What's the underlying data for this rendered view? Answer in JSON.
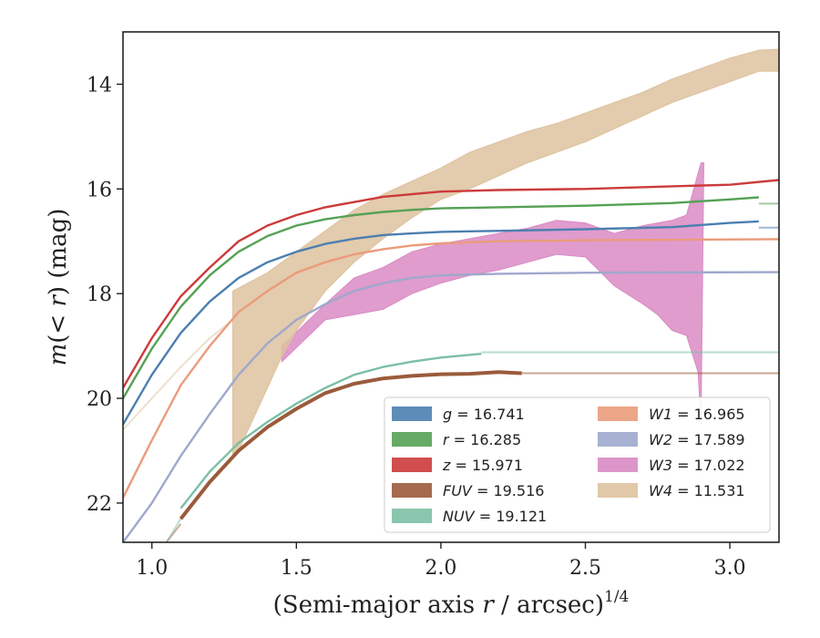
{
  "chart_data": {
    "type": "line",
    "xlabel_main": "(Semi-major axis ",
    "xlabel_var": "r",
    "xlabel_tail": " / arcsec)",
    "xlabel_exp": "1/4",
    "ylabel_main": "m",
    "ylabel_mid": "(< ",
    "ylabel_var": "r",
    "ylabel_tail": ") (mag)",
    "xlim": [
      0.9,
      3.17
    ],
    "ylim": [
      22.75,
      13.0
    ],
    "y_inverted": true,
    "xticks": [
      1.0,
      1.5,
      2.0,
      2.5,
      3.0
    ],
    "xtick_labels": [
      "1.0",
      "1.5",
      "2.0",
      "2.5",
      "3.0"
    ],
    "yticks": [
      14,
      16,
      18,
      20,
      22
    ],
    "ytick_labels": [
      "14",
      "16",
      "18",
      "20",
      "22"
    ],
    "grid": false,
    "legend_position": "lower-right",
    "series": [
      {
        "name": "g = 16.741",
        "color": "#4c7fb0",
        "kind": "line",
        "asymptote": 16.74,
        "points": [
          [
            0.9,
            20.5
          ],
          [
            1.0,
            19.55
          ],
          [
            1.1,
            18.75
          ],
          [
            1.2,
            18.15
          ],
          [
            1.3,
            17.7
          ],
          [
            1.4,
            17.4
          ],
          [
            1.5,
            17.2
          ],
          [
            1.6,
            17.05
          ],
          [
            1.7,
            16.95
          ],
          [
            1.8,
            16.88
          ],
          [
            1.9,
            16.85
          ],
          [
            2.0,
            16.82
          ],
          [
            2.2,
            16.8
          ],
          [
            2.5,
            16.77
          ],
          [
            2.8,
            16.73
          ],
          [
            3.0,
            16.65
          ],
          [
            3.1,
            16.62
          ]
        ]
      },
      {
        "name": "r = 16.285",
        "color": "#55a155",
        "kind": "line",
        "asymptote": 16.28,
        "points": [
          [
            0.9,
            20.0
          ],
          [
            1.0,
            19.05
          ],
          [
            1.1,
            18.25
          ],
          [
            1.2,
            17.65
          ],
          [
            1.3,
            17.2
          ],
          [
            1.4,
            16.9
          ],
          [
            1.5,
            16.7
          ],
          [
            1.6,
            16.58
          ],
          [
            1.7,
            16.5
          ],
          [
            1.8,
            16.44
          ],
          [
            1.9,
            16.4
          ],
          [
            2.0,
            16.37
          ],
          [
            2.2,
            16.35
          ],
          [
            2.5,
            16.32
          ],
          [
            2.8,
            16.27
          ],
          [
            3.0,
            16.2
          ],
          [
            3.1,
            16.16
          ]
        ]
      },
      {
        "name": "z = 15.971",
        "color": "#cc3b3b",
        "kind": "line",
        "asymptote": 15.97,
        "points": [
          [
            0.9,
            19.8
          ],
          [
            1.0,
            18.85
          ],
          [
            1.1,
            18.05
          ],
          [
            1.2,
            17.5
          ],
          [
            1.3,
            17.0
          ],
          [
            1.4,
            16.7
          ],
          [
            1.5,
            16.5
          ],
          [
            1.6,
            16.35
          ],
          [
            1.7,
            16.25
          ],
          [
            1.8,
            16.15
          ],
          [
            1.9,
            16.1
          ],
          [
            2.0,
            16.05
          ],
          [
            2.2,
            16.02
          ],
          [
            2.5,
            16.0
          ],
          [
            2.8,
            15.95
          ],
          [
            3.0,
            15.92
          ],
          [
            3.17,
            15.83
          ]
        ]
      },
      {
        "name": "FUV = 19.516",
        "color": "#9a5b3b",
        "kind": "thick",
        "asymptote": 19.52,
        "points": [
          [
            1.1,
            22.3
          ],
          [
            1.2,
            21.6
          ],
          [
            1.3,
            21.0
          ],
          [
            1.4,
            20.55
          ],
          [
            1.5,
            20.2
          ],
          [
            1.6,
            19.9
          ],
          [
            1.7,
            19.72
          ],
          [
            1.8,
            19.62
          ],
          [
            1.9,
            19.57
          ],
          [
            2.0,
            19.54
          ],
          [
            2.1,
            19.53
          ],
          [
            2.2,
            19.5
          ],
          [
            2.28,
            19.52
          ]
        ]
      },
      {
        "name": "NUV = 19.121",
        "color": "#7dbfa5",
        "kind": "line",
        "asymptote": 19.12,
        "points": [
          [
            1.1,
            22.1
          ],
          [
            1.2,
            21.4
          ],
          [
            1.3,
            20.85
          ],
          [
            1.4,
            20.45
          ],
          [
            1.5,
            20.1
          ],
          [
            1.6,
            19.8
          ],
          [
            1.7,
            19.55
          ],
          [
            1.8,
            19.4
          ],
          [
            1.9,
            19.3
          ],
          [
            2.0,
            19.22
          ],
          [
            2.14,
            19.15
          ]
        ]
      },
      {
        "name": "W1 = 16.965",
        "color": "#eb9b7b",
        "kind": "line",
        "asymptote": 16.97,
        "points": [
          [
            0.9,
            21.9
          ],
          [
            1.0,
            20.8
          ],
          [
            1.1,
            19.75
          ],
          [
            1.2,
            19.0
          ],
          [
            1.3,
            18.35
          ],
          [
            1.4,
            17.95
          ],
          [
            1.5,
            17.6
          ],
          [
            1.6,
            17.4
          ],
          [
            1.7,
            17.25
          ],
          [
            1.8,
            17.15
          ],
          [
            1.9,
            17.08
          ],
          [
            2.0,
            17.04
          ],
          [
            2.2,
            17.0
          ],
          [
            2.5,
            16.98
          ],
          [
            3.17,
            16.96
          ]
        ]
      },
      {
        "name": "W2 = 17.589",
        "color": "#9fa8cc",
        "kind": "line",
        "asymptote": 17.59,
        "points": [
          [
            0.9,
            22.75
          ],
          [
            1.0,
            22.0
          ],
          [
            1.1,
            21.1
          ],
          [
            1.2,
            20.3
          ],
          [
            1.3,
            19.55
          ],
          [
            1.4,
            18.95
          ],
          [
            1.5,
            18.5
          ],
          [
            1.6,
            18.2
          ],
          [
            1.7,
            17.95
          ],
          [
            1.8,
            17.8
          ],
          [
            1.9,
            17.7
          ],
          [
            2.0,
            17.65
          ],
          [
            2.2,
            17.62
          ],
          [
            2.5,
            17.6
          ],
          [
            3.17,
            17.59
          ]
        ]
      },
      {
        "name": "W3 = 17.022",
        "color": "#d98bc4",
        "kind": "band",
        "upper": [
          [
            1.45,
            19.0
          ],
          [
            1.6,
            18.2
          ],
          [
            1.7,
            17.7
          ],
          [
            1.8,
            17.5
          ],
          [
            1.9,
            17.2
          ],
          [
            2.0,
            17.05
          ],
          [
            2.1,
            16.95
          ],
          [
            2.2,
            16.85
          ],
          [
            2.3,
            16.75
          ],
          [
            2.4,
            16.6
          ],
          [
            2.5,
            16.65
          ],
          [
            2.6,
            16.85
          ],
          [
            2.7,
            16.7
          ],
          [
            2.8,
            16.6
          ],
          [
            2.85,
            16.5
          ],
          [
            2.9,
            15.5
          ],
          [
            2.91,
            15.5
          ]
        ],
        "lower": [
          [
            2.91,
            15.5
          ],
          [
            2.9,
            20.5
          ],
          [
            2.89,
            19.5
          ],
          [
            2.85,
            18.8
          ],
          [
            2.8,
            18.7
          ],
          [
            2.75,
            18.4
          ],
          [
            2.7,
            18.2
          ],
          [
            2.6,
            17.85
          ],
          [
            2.5,
            17.3
          ],
          [
            2.4,
            17.25
          ],
          [
            2.3,
            17.4
          ],
          [
            2.2,
            17.55
          ],
          [
            2.1,
            17.65
          ],
          [
            2.0,
            17.8
          ],
          [
            1.9,
            18.0
          ],
          [
            1.8,
            18.3
          ],
          [
            1.7,
            18.4
          ],
          [
            1.6,
            18.5
          ],
          [
            1.45,
            19.3
          ]
        ]
      },
      {
        "name": "W4 = 11.531",
        "color": "#dec29f",
        "kind": "band",
        "upper": [
          [
            1.28,
            17.95
          ],
          [
            1.4,
            17.6
          ],
          [
            1.5,
            17.2
          ],
          [
            1.6,
            16.8
          ],
          [
            1.7,
            16.4
          ],
          [
            1.8,
            16.1
          ],
          [
            1.9,
            15.85
          ],
          [
            2.0,
            15.6
          ],
          [
            2.1,
            15.3
          ],
          [
            2.2,
            15.1
          ],
          [
            2.3,
            14.9
          ],
          [
            2.4,
            14.75
          ],
          [
            2.5,
            14.55
          ],
          [
            2.6,
            14.35
          ],
          [
            2.7,
            14.15
          ],
          [
            2.8,
            13.9
          ],
          [
            2.9,
            13.7
          ],
          [
            3.0,
            13.5
          ],
          [
            3.1,
            13.35
          ],
          [
            3.17,
            13.33
          ]
        ],
        "lower": [
          [
            3.17,
            13.75
          ],
          [
            3.1,
            13.75
          ],
          [
            3.0,
            13.95
          ],
          [
            2.9,
            14.15
          ],
          [
            2.8,
            14.35
          ],
          [
            2.7,
            14.6
          ],
          [
            2.6,
            14.85
          ],
          [
            2.5,
            15.1
          ],
          [
            2.4,
            15.3
          ],
          [
            2.3,
            15.5
          ],
          [
            2.2,
            15.75
          ],
          [
            2.1,
            16.0
          ],
          [
            2.0,
            16.2
          ],
          [
            1.9,
            16.55
          ],
          [
            1.8,
            16.95
          ],
          [
            1.7,
            17.4
          ],
          [
            1.6,
            17.95
          ],
          [
            1.5,
            18.7
          ],
          [
            1.45,
            19.2
          ],
          [
            1.4,
            19.8
          ],
          [
            1.35,
            20.4
          ],
          [
            1.3,
            21.0
          ],
          [
            1.28,
            21.1
          ]
        ]
      }
    ],
    "faint_tails": [
      {
        "series": "W4 = 11.531",
        "color": "#dec29f",
        "points": [
          [
            0.9,
            20.6
          ],
          [
            1.0,
            20.0
          ],
          [
            1.1,
            19.4
          ],
          [
            1.2,
            18.85
          ],
          [
            1.28,
            18.5
          ]
        ]
      },
      {
        "series": "FUV = 19.516",
        "color": "#9a5b3b",
        "points": [
          [
            1.05,
            22.75
          ],
          [
            1.1,
            22.4
          ]
        ]
      },
      {
        "series": "NUV = 19.121",
        "color": "#7dbfa5",
        "points": [
          [
            1.05,
            22.75
          ],
          [
            1.1,
            22.3
          ]
        ]
      }
    ]
  }
}
